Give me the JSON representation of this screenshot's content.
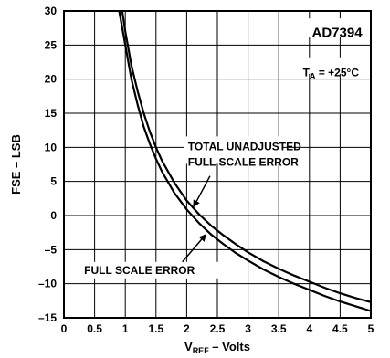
{
  "chart_data": {
    "type": "line",
    "title": "AD7394",
    "condition": {
      "prefix": "T",
      "subscript": "A",
      "rest": " = +25°C"
    },
    "xlabel": {
      "prefix": "V",
      "subscript": "REF",
      "rest": " – Volts"
    },
    "ylabel": "FSE – LSB",
    "xlim": [
      0,
      5
    ],
    "ylim": [
      -15,
      30
    ],
    "x_ticks": [
      "0",
      "0.5",
      "1",
      "1.5",
      "2",
      "2.5",
      "3",
      "3.5",
      "4",
      "4.5",
      "5"
    ],
    "y_ticks": [
      "30",
      "25",
      "20",
      "15",
      "10",
      "5",
      "0",
      "–5",
      "–10",
      "–15"
    ],
    "grid": true,
    "series": [
      {
        "name": "TOTAL UNADJUSTED FULL SCALE ERROR",
        "x": [
          0.95,
          1.0,
          1.1,
          1.2,
          1.3,
          1.4,
          1.5,
          1.6,
          1.8,
          2.0,
          2.2,
          2.4,
          2.6,
          2.8,
          3.0,
          3.25,
          3.5,
          3.75,
          4.0,
          4.25,
          4.5,
          4.75,
          5.0
        ],
        "y": [
          30.0,
          27.0,
          22.0,
          18.3,
          15.0,
          12.3,
          10.0,
          8.0,
          4.8,
          2.2,
          0.2,
          -1.5,
          -2.9,
          -4.2,
          -5.4,
          -6.7,
          -7.8,
          -8.8,
          -9.7,
          -10.6,
          -11.4,
          -12.1,
          -12.7
        ]
      },
      {
        "name": "FULL SCALE ERROR",
        "x": [
          0.9,
          1.0,
          1.1,
          1.2,
          1.3,
          1.4,
          1.5,
          1.6,
          1.8,
          2.0,
          2.2,
          2.4,
          2.6,
          2.8,
          3.0,
          3.25,
          3.5,
          3.75,
          4.0,
          4.25,
          4.5,
          4.75,
          5.0
        ],
        "y": [
          30.0,
          25.0,
          20.0,
          16.3,
          13.0,
          10.5,
          8.3,
          6.4,
          3.3,
          0.9,
          -1.1,
          -2.8,
          -4.2,
          -5.5,
          -6.6,
          -7.9,
          -9.0,
          -10.0,
          -10.9,
          -11.8,
          -12.6,
          -13.3,
          -14.0
        ]
      }
    ],
    "annotations": [
      {
        "lines": [
          "TOTAL UNADJUSTED",
          "FULL SCALE ERROR"
        ],
        "series": 0
      },
      {
        "lines": [
          "FULL SCALE ERROR"
        ],
        "series": 1
      }
    ]
  }
}
